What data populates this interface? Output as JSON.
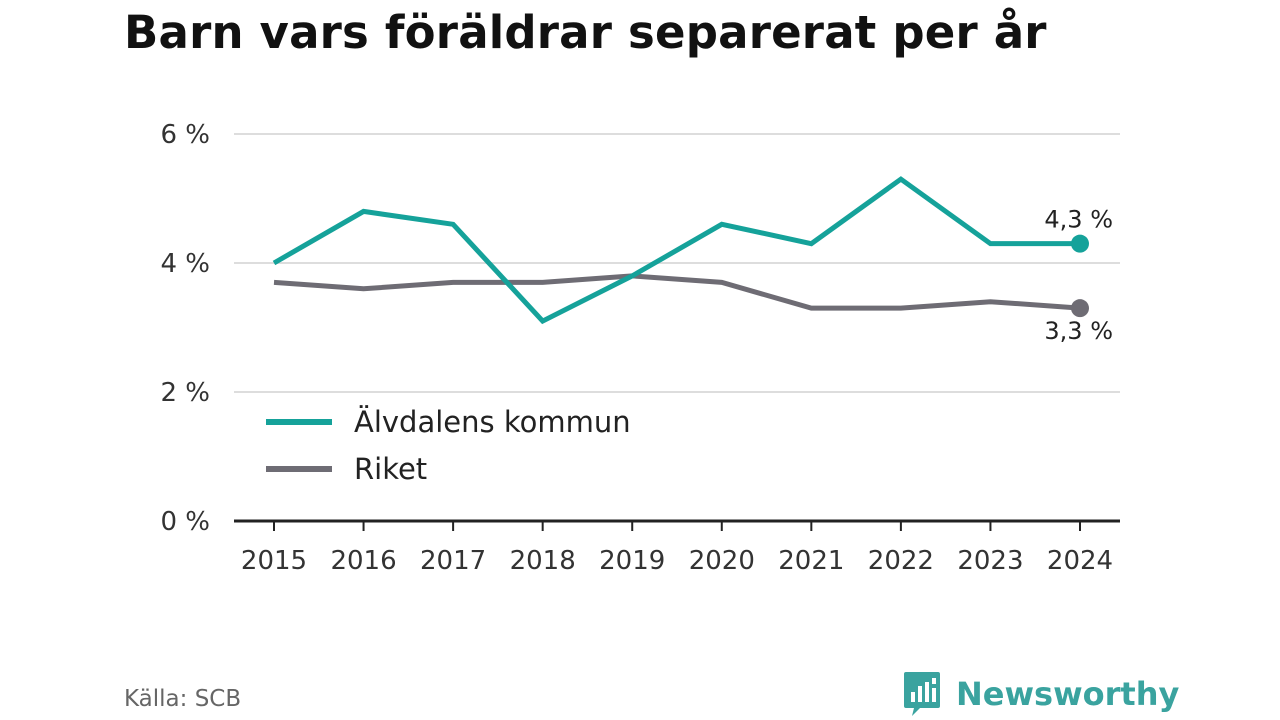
{
  "title": "Barn vars föräldrar separerat per år",
  "source": "Källa: SCB",
  "brand": {
    "name": "Newsworthy",
    "logo_icon": "newsworthy-logo-icon"
  },
  "colors": {
    "alvdalen": "#15a29a",
    "riket": "#6e6c74",
    "grid": "#dddddd",
    "axis": "#222222",
    "brand": "#3aa39f"
  },
  "chart_data": {
    "type": "line",
    "title": "Barn vars föräldrar separerat per år",
    "x": [
      "2015",
      "2016",
      "2017",
      "2018",
      "2019",
      "2020",
      "2021",
      "2022",
      "2023",
      "2024"
    ],
    "ylim": [
      0,
      6
    ],
    "yticks": [
      0,
      2,
      4,
      6
    ],
    "ytick_labels": [
      "0 %",
      "2 %",
      "4 %",
      "6 %"
    ],
    "grid": true,
    "legend_position": "bottom-left",
    "series": [
      {
        "name": "Älvdalens kommun",
        "color": "#15a29a",
        "values": [
          4.0,
          4.8,
          4.6,
          3.1,
          3.8,
          4.6,
          4.3,
          5.3,
          4.3,
          4.3
        ],
        "end_label": "4,3 %"
      },
      {
        "name": "Riket",
        "color": "#6e6c74",
        "values": [
          3.7,
          3.6,
          3.7,
          3.7,
          3.8,
          3.7,
          3.3,
          3.3,
          3.4,
          3.3
        ],
        "end_label": "3,3 %"
      }
    ]
  }
}
